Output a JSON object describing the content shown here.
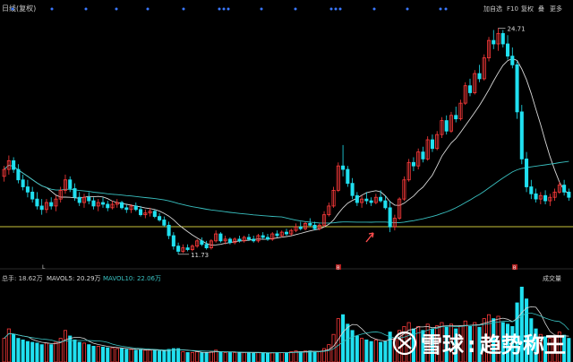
{
  "header": {
    "title": "日线(复权)",
    "right_tools": [
      "加自选",
      "F10",
      "复权",
      "叠",
      "更多"
    ]
  },
  "price_panel": {
    "high_label": "24.71",
    "low_label": "11.73"
  },
  "volume_panel": {
    "legend": [
      "总手: 18.62万",
      "MAVOL5: 20.29万",
      "MAVOL10: 22.06万"
    ],
    "title": "成交量"
  },
  "markers": {
    "bar_marker": "B"
  },
  "watermark": {
    "brand": "雪球",
    "text": "趋势称王"
  },
  "colors": {
    "up": "#ff3b3b",
    "down": "#20e0f0",
    "ma_white": "#d8d8d8",
    "ma_cyan": "#39c0c0",
    "hline": "#c7c23a",
    "dots": "#3a78ff",
    "arrow": "#ff4d4d"
  },
  "chart_data": {
    "type": "candlestick",
    "price_range": [
      11.0,
      25.6
    ],
    "volume_range": [
      0,
      100
    ],
    "candles": [
      [
        16.2,
        16.8,
        15.9,
        16.6,
        30
      ],
      [
        16.6,
        17.4,
        16.3,
        17.1,
        42
      ],
      [
        17.1,
        17.3,
        16.4,
        16.6,
        35
      ],
      [
        16.6,
        16.9,
        15.8,
        16.0,
        30
      ],
      [
        16.0,
        16.3,
        15.4,
        15.6,
        28
      ],
      [
        15.6,
        16.0,
        15.0,
        15.3,
        26
      ],
      [
        15.3,
        15.6,
        14.7,
        14.9,
        25
      ],
      [
        14.9,
        15.3,
        14.3,
        14.5,
        24
      ],
      [
        14.5,
        14.9,
        14.0,
        14.3,
        22
      ],
      [
        14.3,
        14.9,
        14.1,
        14.7,
        24
      ],
      [
        14.7,
        15.0,
        14.3,
        14.5,
        22
      ],
      [
        14.5,
        15.1,
        14.2,
        14.9,
        25
      ],
      [
        14.9,
        15.6,
        14.7,
        15.4,
        30
      ],
      [
        15.4,
        16.3,
        15.2,
        16.0,
        40
      ],
      [
        16.0,
        16.2,
        15.3,
        15.5,
        33
      ],
      [
        15.5,
        15.8,
        14.8,
        15.0,
        28
      ],
      [
        15.0,
        15.3,
        14.5,
        14.7,
        25
      ],
      [
        14.7,
        15.2,
        14.4,
        15.0,
        24
      ],
      [
        15.0,
        15.3,
        14.6,
        14.8,
        22
      ],
      [
        14.8,
        15.0,
        14.3,
        14.5,
        20
      ],
      [
        14.5,
        14.9,
        14.2,
        14.7,
        20
      ],
      [
        14.7,
        15.0,
        14.4,
        14.6,
        19
      ],
      [
        14.6,
        14.8,
        14.2,
        14.4,
        18
      ],
      [
        14.4,
        14.8,
        14.3,
        14.6,
        18
      ],
      [
        14.6,
        14.9,
        14.4,
        14.7,
        17
      ],
      [
        14.7,
        14.8,
        14.3,
        14.4,
        17
      ],
      [
        14.4,
        14.6,
        14.1,
        14.3,
        16
      ],
      [
        14.3,
        14.6,
        14.1,
        14.5,
        16
      ],
      [
        14.5,
        14.7,
        14.2,
        14.3,
        15
      ],
      [
        14.3,
        14.5,
        13.9,
        14.0,
        16
      ],
      [
        14.0,
        14.3,
        13.8,
        14.1,
        15
      ],
      [
        14.1,
        14.4,
        13.9,
        14.2,
        15
      ],
      [
        14.2,
        14.3,
        13.8,
        13.9,
        15
      ],
      [
        13.9,
        14.1,
        13.6,
        13.7,
        14
      ],
      [
        13.7,
        13.9,
        13.3,
        13.4,
        14
      ],
      [
        13.4,
        13.6,
        12.6,
        12.8,
        16
      ],
      [
        12.8,
        13.0,
        12.0,
        12.2,
        17
      ],
      [
        12.2,
        12.4,
        11.73,
        11.9,
        17
      ],
      [
        11.9,
        12.3,
        11.8,
        12.1,
        13
      ],
      [
        12.1,
        12.3,
        11.9,
        12.0,
        12
      ],
      [
        12.0,
        12.3,
        11.9,
        12.2,
        12
      ],
      [
        12.2,
        12.6,
        12.1,
        12.5,
        13
      ],
      [
        12.5,
        12.7,
        12.2,
        12.3,
        12
      ],
      [
        12.3,
        12.5,
        12.0,
        12.1,
        12
      ],
      [
        12.1,
        12.6,
        12.0,
        12.5,
        13
      ],
      [
        12.5,
        13.1,
        12.4,
        12.9,
        15
      ],
      [
        12.9,
        13.0,
        12.4,
        12.5,
        13
      ],
      [
        12.5,
        12.8,
        12.3,
        12.6,
        12
      ],
      [
        12.6,
        12.7,
        12.3,
        12.4,
        12
      ],
      [
        12.4,
        12.7,
        12.3,
        12.6,
        12
      ],
      [
        12.6,
        12.8,
        12.4,
        12.5,
        12
      ],
      [
        12.5,
        12.8,
        12.4,
        12.7,
        12
      ],
      [
        12.7,
        12.9,
        12.5,
        12.6,
        12
      ],
      [
        12.6,
        12.8,
        12.4,
        12.5,
        11
      ],
      [
        12.5,
        12.9,
        12.4,
        12.8,
        12
      ],
      [
        12.8,
        13.0,
        12.6,
        12.7,
        12
      ],
      [
        12.7,
        12.9,
        12.5,
        12.6,
        11
      ],
      [
        12.6,
        13.0,
        12.5,
        12.9,
        12
      ],
      [
        12.9,
        13.1,
        12.7,
        12.8,
        12
      ],
      [
        12.8,
        13.1,
        12.7,
        13.0,
        12
      ],
      [
        13.0,
        13.2,
        12.8,
        12.9,
        12
      ],
      [
        12.9,
        13.2,
        12.8,
        13.1,
        13
      ],
      [
        13.1,
        13.5,
        13.0,
        13.3,
        14
      ],
      [
        13.3,
        13.6,
        13.1,
        13.2,
        13
      ],
      [
        13.2,
        13.6,
        13.1,
        13.5,
        14
      ],
      [
        13.5,
        13.8,
        13.3,
        13.4,
        14
      ],
      [
        13.4,
        13.6,
        13.1,
        13.2,
        13
      ],
      [
        13.2,
        13.5,
        13.1,
        13.4,
        13
      ],
      [
        13.4,
        14.2,
        13.3,
        14.0,
        17
      ],
      [
        14.0,
        14.7,
        13.9,
        14.5,
        22
      ],
      [
        14.5,
        15.6,
        14.4,
        15.4,
        35
      ],
      [
        15.4,
        17.0,
        15.3,
        16.8,
        55
      ],
      [
        16.8,
        18.0,
        16.2,
        16.6,
        60
      ],
      [
        16.6,
        16.8,
        15.6,
        15.8,
        48
      ],
      [
        15.8,
        16.1,
        14.9,
        15.1,
        40
      ],
      [
        15.1,
        15.3,
        14.5,
        14.7,
        33
      ],
      [
        14.7,
        15.1,
        14.4,
        14.9,
        30
      ],
      [
        14.9,
        15.3,
        14.6,
        14.8,
        28
      ],
      [
        14.8,
        15.0,
        14.5,
        14.7,
        26
      ],
      [
        14.7,
        15.2,
        14.6,
        15.0,
        28
      ],
      [
        15.0,
        15.4,
        14.7,
        14.8,
        25
      ],
      [
        14.8,
        15.1,
        14.3,
        14.4,
        26
      ],
      [
        14.4,
        14.8,
        13.0,
        13.3,
        38
      ],
      [
        13.3,
        14.0,
        13.1,
        13.8,
        30
      ],
      [
        13.8,
        15.0,
        13.7,
        14.9,
        40
      ],
      [
        14.9,
        16.2,
        14.8,
        16.0,
        45
      ],
      [
        16.0,
        17.2,
        15.9,
        17.0,
        50
      ],
      [
        17.0,
        17.3,
        16.5,
        16.8,
        42
      ],
      [
        16.8,
        17.8,
        16.6,
        17.6,
        45
      ],
      [
        17.6,
        17.9,
        17.0,
        17.2,
        40
      ],
      [
        17.2,
        18.5,
        17.1,
        18.3,
        48
      ],
      [
        18.3,
        18.6,
        17.6,
        17.8,
        42
      ],
      [
        17.8,
        18.8,
        17.7,
        18.6,
        46
      ],
      [
        18.6,
        19.6,
        18.4,
        19.4,
        50
      ],
      [
        19.4,
        19.7,
        18.6,
        18.8,
        44
      ],
      [
        18.8,
        19.9,
        18.7,
        19.7,
        48
      ],
      [
        19.7,
        20.2,
        19.3,
        19.5,
        42
      ],
      [
        19.5,
        20.6,
        19.4,
        20.4,
        46
      ],
      [
        20.4,
        21.6,
        20.3,
        21.4,
        52
      ],
      [
        21.4,
        21.8,
        20.8,
        21.0,
        45
      ],
      [
        21.0,
        22.3,
        20.9,
        22.1,
        50
      ],
      [
        22.1,
        22.6,
        21.6,
        21.8,
        44
      ],
      [
        21.8,
        23.2,
        21.7,
        23.0,
        55
      ],
      [
        23.0,
        24.2,
        22.8,
        24.0,
        60
      ],
      [
        24.0,
        24.6,
        23.5,
        23.8,
        55
      ],
      [
        23.8,
        24.71,
        23.4,
        24.4,
        58
      ],
      [
        24.4,
        24.6,
        23.6,
        23.8,
        50
      ],
      [
        23.8,
        24.3,
        22.9,
        23.1,
        48
      ],
      [
        23.1,
        23.6,
        22.4,
        22.6,
        45
      ],
      [
        22.6,
        22.8,
        19.5,
        19.9,
        75
      ],
      [
        19.9,
        20.3,
        16.9,
        17.2,
        95
      ],
      [
        17.2,
        17.6,
        15.3,
        15.6,
        80
      ],
      [
        15.6,
        16.0,
        14.9,
        15.2,
        55
      ],
      [
        15.2,
        15.5,
        14.7,
        14.9,
        42
      ],
      [
        14.9,
        15.3,
        14.6,
        15.1,
        35
      ],
      [
        15.1,
        15.4,
        14.6,
        14.8,
        32
      ],
      [
        14.8,
        15.2,
        14.5,
        15.0,
        30
      ],
      [
        15.0,
        15.5,
        14.8,
        15.3,
        32
      ],
      [
        15.3,
        15.9,
        15.2,
        15.7,
        38
      ],
      [
        15.7,
        16.0,
        15.1,
        15.3,
        34
      ],
      [
        15.3,
        15.5,
        14.8,
        15.0,
        30
      ]
    ]
  }
}
